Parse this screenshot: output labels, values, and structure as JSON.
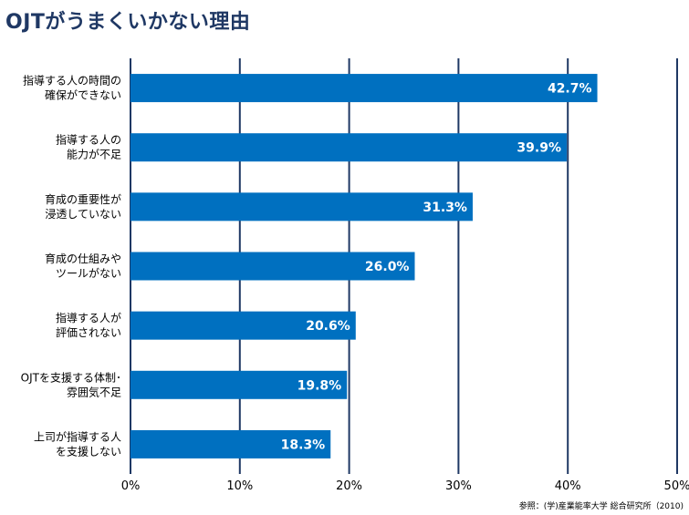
{
  "chart_data": {
    "type": "bar",
    "orientation": "horizontal",
    "title": "OJTがうまくいかない理由",
    "categories": [
      [
        "指導する人の時間の",
        "確保ができない"
      ],
      [
        "指導する人の",
        "能力が不足"
      ],
      [
        "育成の重要性が",
        "浸透していない"
      ],
      [
        "育成の仕組みや",
        "ツールがない"
      ],
      [
        "指導する人が",
        "評価されない"
      ],
      [
        "OJTを支援する体制･",
        "雰囲気不足"
      ],
      [
        "上司が指導する人",
        "を支援しない"
      ]
    ],
    "values": [
      42.7,
      39.9,
      31.3,
      26.0,
      20.6,
      19.8,
      18.3
    ],
    "value_labels": [
      "42.7%",
      "39.9%",
      "31.3%",
      "26.0%",
      "20.6%",
      "19.8%",
      "18.3%"
    ],
    "xlim": [
      0,
      50
    ],
    "x_ticks": [
      "0%",
      "10%",
      "20%",
      "30%",
      "40%",
      "50%"
    ],
    "grid": true,
    "legend": "none",
    "source": "参照：(学)産業能率大学 総合研究所（2010)",
    "colors": {
      "bar": "#0070c0",
      "grid": "#1f3864",
      "title": "#1f3864"
    }
  }
}
